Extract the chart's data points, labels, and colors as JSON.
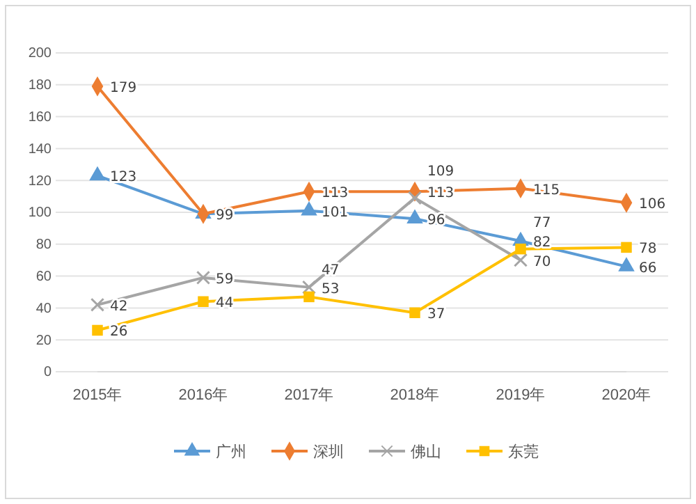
{
  "chart_data": {
    "type": "line",
    "categories": [
      "2015年",
      "2016年",
      "2017年",
      "2018年",
      "2019年",
      "2020年"
    ],
    "series": [
      {
        "name": "广州",
        "color": "#5b9bd5",
        "marker": "triangle",
        "values": [
          123,
          99,
          101,
          96,
          82,
          66
        ]
      },
      {
        "name": "深圳",
        "color": "#ed7d31",
        "marker": "diamond",
        "values": [
          179,
          99,
          113,
          113,
          115,
          106
        ],
        "value_labels": [
          "179",
          null,
          "113",
          "113",
          "115",
          "106"
        ]
      },
      {
        "name": "佛山",
        "color": "#a5a5a5",
        "marker": "cross",
        "values": [
          42,
          59,
          53,
          109,
          70,
          null
        ]
      },
      {
        "name": "东莞",
        "color": "#ffc000",
        "marker": "square",
        "values": [
          26,
          44,
          47,
          37,
          77,
          78
        ]
      }
    ],
    "ylim": [
      0,
      200
    ],
    "yticks": [
      0,
      20,
      40,
      60,
      80,
      100,
      120,
      140,
      160,
      180,
      200
    ],
    "grid": "y",
    "legend": "bottom",
    "data_labels": true
  }
}
